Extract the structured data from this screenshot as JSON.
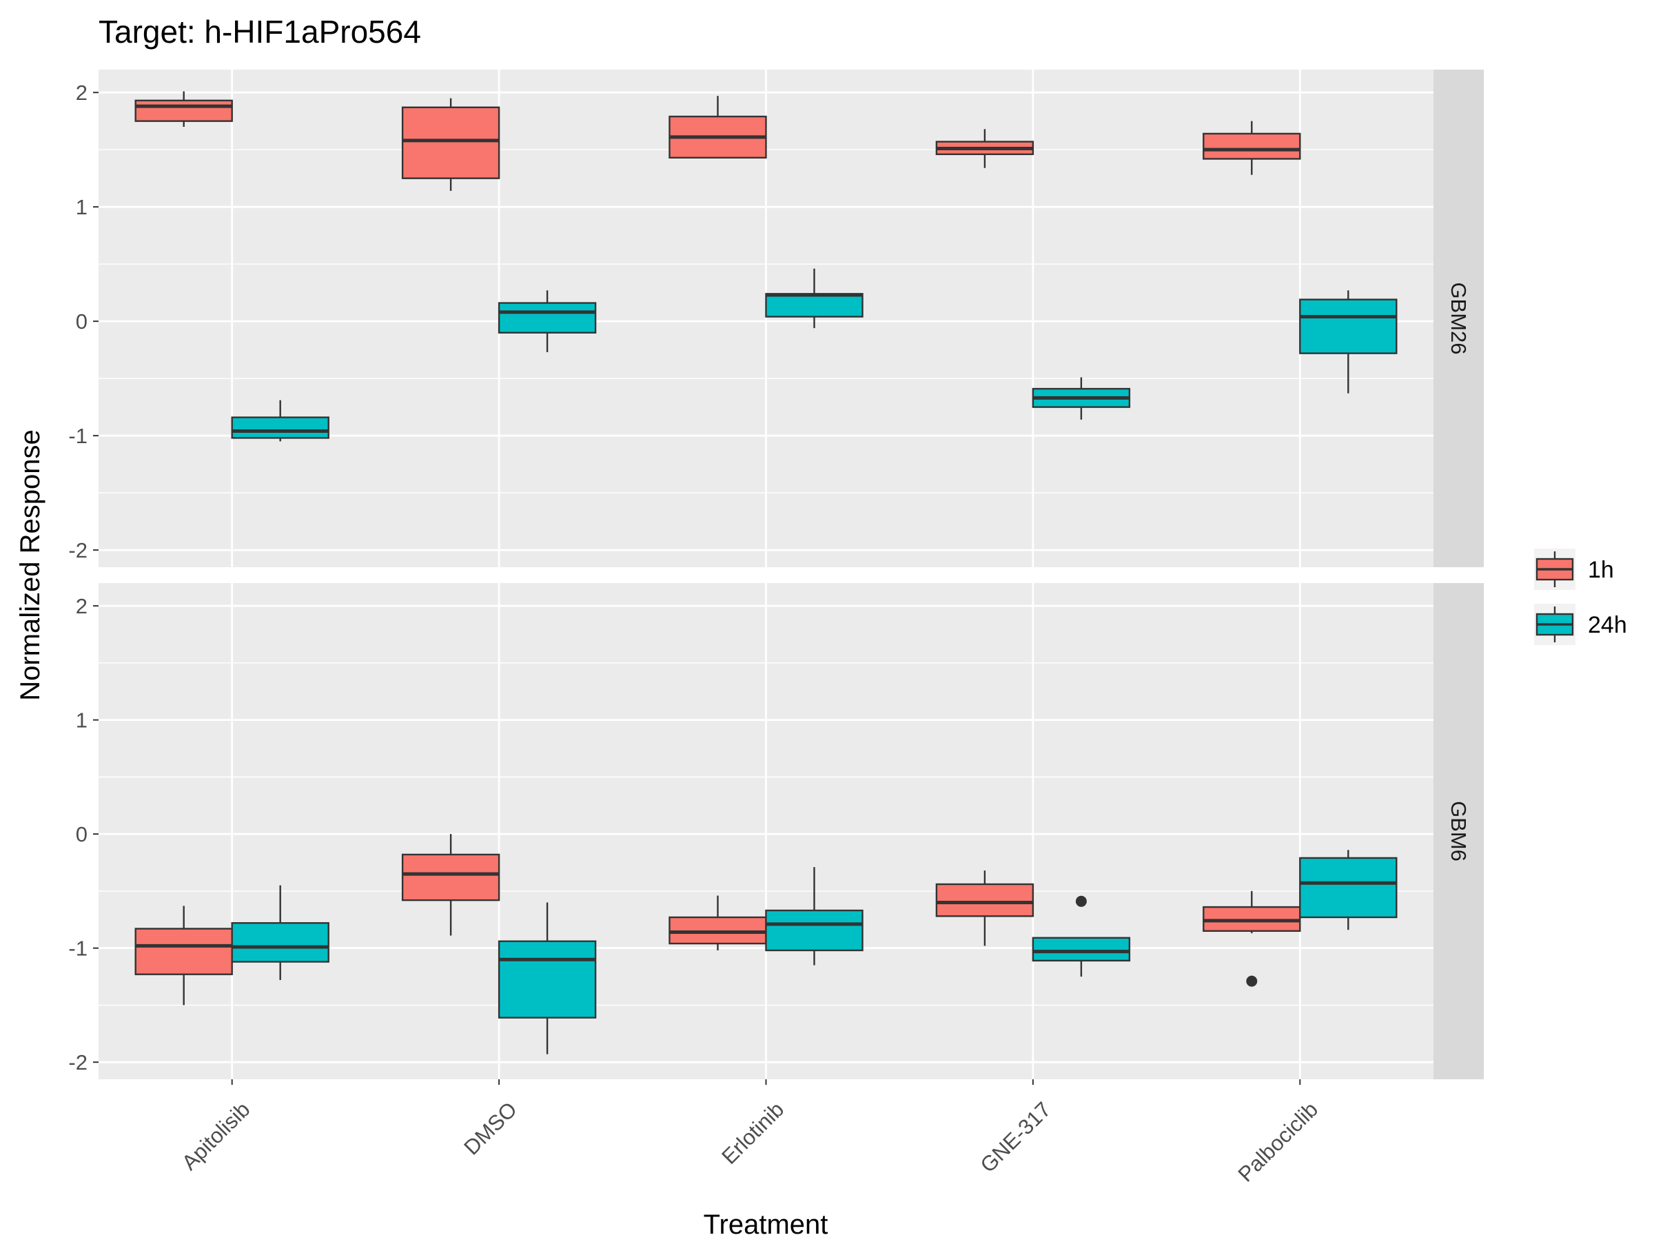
{
  "chart_data": {
    "type": "boxplot",
    "title": "Target: h-HIF1aPro564",
    "xlabel": "Treatment",
    "ylabel": "Normalized Response",
    "categories": [
      "Apitolisib",
      "DMSO",
      "Erlotinib",
      "GNE-317",
      "Palbociclib"
    ],
    "ylim": [
      -2.15,
      2.2
    ],
    "yticks": [
      -2,
      -1,
      0,
      1,
      2
    ],
    "ytick_labels": [
      "-2",
      "-1",
      "0",
      "1",
      "2"
    ],
    "grid": true,
    "legend_position": "right",
    "groups": [
      {
        "name": "1h",
        "color": "#F8766D"
      },
      {
        "name": "24h",
        "color": "#00BFC4"
      }
    ],
    "panels": [
      {
        "strip": "GBM26",
        "boxes": [
          {
            "category": "Apitolisib",
            "group": "1h",
            "min": 1.7,
            "q1": 1.75,
            "median": 1.88,
            "q3": 1.93,
            "max": 2.01,
            "outliers": []
          },
          {
            "category": "Apitolisib",
            "group": "24h",
            "min": -1.05,
            "q1": -1.02,
            "median": -0.96,
            "q3": -0.84,
            "max": -0.69,
            "outliers": []
          },
          {
            "category": "DMSO",
            "group": "1h",
            "min": 1.14,
            "q1": 1.25,
            "median": 1.58,
            "q3": 1.87,
            "max": 1.95,
            "outliers": []
          },
          {
            "category": "DMSO",
            "group": "24h",
            "min": -0.27,
            "q1": -0.1,
            "median": 0.08,
            "q3": 0.16,
            "max": 0.27,
            "outliers": []
          },
          {
            "category": "Erlotinib",
            "group": "1h",
            "min": 1.43,
            "q1": 1.43,
            "median": 1.61,
            "q3": 1.79,
            "max": 1.97,
            "outliers": []
          },
          {
            "category": "Erlotinib",
            "group": "24h",
            "min": -0.06,
            "q1": 0.04,
            "median": 0.23,
            "q3": 0.24,
            "max": 0.46,
            "outliers": []
          },
          {
            "category": "GNE-317",
            "group": "1h",
            "min": 1.34,
            "q1": 1.46,
            "median": 1.51,
            "q3": 1.57,
            "max": 1.68,
            "outliers": []
          },
          {
            "category": "GNE-317",
            "group": "24h",
            "min": -0.86,
            "q1": -0.75,
            "median": -0.67,
            "q3": -0.59,
            "max": -0.49,
            "outliers": []
          },
          {
            "category": "Palbociclib",
            "group": "1h",
            "min": 1.28,
            "q1": 1.42,
            "median": 1.5,
            "q3": 1.64,
            "max": 1.75,
            "outliers": []
          },
          {
            "category": "Palbociclib",
            "group": "24h",
            "min": -0.63,
            "q1": -0.28,
            "median": 0.04,
            "q3": 0.19,
            "max": 0.27,
            "outliers": []
          }
        ]
      },
      {
        "strip": "GBM6",
        "boxes": [
          {
            "category": "Apitolisib",
            "group": "1h",
            "min": -1.5,
            "q1": -1.23,
            "median": -0.98,
            "q3": -0.83,
            "max": -0.63,
            "outliers": []
          },
          {
            "category": "Apitolisib",
            "group": "24h",
            "min": -1.28,
            "q1": -1.12,
            "median": -0.99,
            "q3": -0.78,
            "max": -0.45,
            "outliers": []
          },
          {
            "category": "DMSO",
            "group": "1h",
            "min": -0.89,
            "q1": -0.58,
            "median": -0.35,
            "q3": -0.18,
            "max": 0.0,
            "outliers": []
          },
          {
            "category": "DMSO",
            "group": "24h",
            "min": -1.93,
            "q1": -1.61,
            "median": -1.1,
            "q3": -0.94,
            "max": -0.6,
            "outliers": []
          },
          {
            "category": "Erlotinib",
            "group": "1h",
            "min": -1.02,
            "q1": -0.96,
            "median": -0.86,
            "q3": -0.73,
            "max": -0.54,
            "outliers": []
          },
          {
            "category": "Erlotinib",
            "group": "24h",
            "min": -1.15,
            "q1": -1.02,
            "median": -0.79,
            "q3": -0.67,
            "max": -0.29,
            "outliers": []
          },
          {
            "category": "GNE-317",
            "group": "1h",
            "min": -0.98,
            "q1": -0.72,
            "median": -0.6,
            "q3": -0.44,
            "max": -0.32,
            "outliers": []
          },
          {
            "category": "GNE-317",
            "group": "24h",
            "min": -1.25,
            "q1": -1.11,
            "median": -1.03,
            "q3": -0.91,
            "max": -0.91,
            "outliers": [
              -0.59
            ]
          },
          {
            "category": "Palbociclib",
            "group": "1h",
            "min": -0.87,
            "q1": -0.85,
            "median": -0.76,
            "q3": -0.64,
            "max": -0.5,
            "outliers": [
              -1.29
            ]
          },
          {
            "category": "Palbociclib",
            "group": "24h",
            "min": -0.84,
            "q1": -0.73,
            "median": -0.43,
            "q3": -0.21,
            "max": -0.14,
            "outliers": []
          }
        ]
      }
    ]
  }
}
